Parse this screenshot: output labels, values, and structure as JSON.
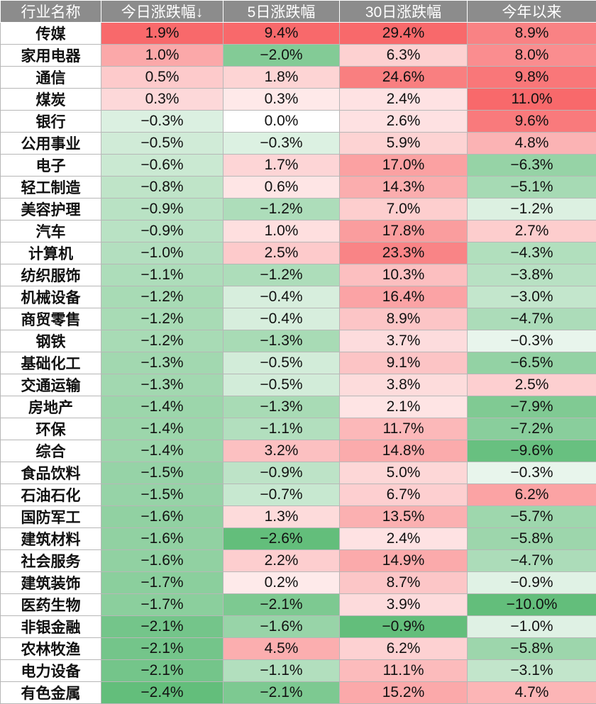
{
  "table": {
    "headers": [
      "行业名称",
      "今日涨跌幅↓",
      "5日涨跌幅",
      "30日涨跌幅",
      "今年以来"
    ],
    "rows": [
      [
        "传媒",
        "1.9%",
        "9.4%",
        "29.4%",
        "8.9%"
      ],
      [
        "家用电器",
        "1.0%",
        "−2.0%",
        "6.3%",
        "8.0%"
      ],
      [
        "通信",
        "0.5%",
        "1.8%",
        "24.6%",
        "9.8%"
      ],
      [
        "煤炭",
        "0.3%",
        "0.3%",
        "2.4%",
        "11.0%"
      ],
      [
        "银行",
        "−0.3%",
        "0.0%",
        "2.6%",
        "9.6%"
      ],
      [
        "公用事业",
        "−0.5%",
        "−0.3%",
        "5.9%",
        "4.8%"
      ],
      [
        "电子",
        "−0.6%",
        "1.7%",
        "17.0%",
        "−6.3%"
      ],
      [
        "轻工制造",
        "−0.8%",
        "0.6%",
        "14.3%",
        "−5.1%"
      ],
      [
        "美容护理",
        "−0.9%",
        "−1.2%",
        "7.0%",
        "−1.2%"
      ],
      [
        "汽车",
        "−0.9%",
        "1.0%",
        "17.8%",
        "2.7%"
      ],
      [
        "计算机",
        "−1.0%",
        "2.5%",
        "23.3%",
        "−4.3%"
      ],
      [
        "纺织服饰",
        "−1.1%",
        "−1.2%",
        "10.3%",
        "−3.8%"
      ],
      [
        "机械设备",
        "−1.2%",
        "−0.4%",
        "16.4%",
        "−3.0%"
      ],
      [
        "商贸零售",
        "−1.2%",
        "−0.4%",
        "8.9%",
        "−4.7%"
      ],
      [
        "钢铁",
        "−1.2%",
        "−1.3%",
        "3.7%",
        "−0.3%"
      ],
      [
        "基础化工",
        "−1.3%",
        "−0.5%",
        "9.1%",
        "−6.5%"
      ],
      [
        "交通运输",
        "−1.3%",
        "−0.5%",
        "3.8%",
        "2.5%"
      ],
      [
        "房地产",
        "−1.4%",
        "−1.3%",
        "2.1%",
        "−7.9%"
      ],
      [
        "环保",
        "−1.4%",
        "−1.1%",
        "11.7%",
        "−7.2%"
      ],
      [
        "综合",
        "−1.4%",
        "3.2%",
        "14.8%",
        "−9.6%"
      ],
      [
        "食品饮料",
        "−1.5%",
        "−0.9%",
        "5.0%",
        "−0.3%"
      ],
      [
        "石油石化",
        "−1.5%",
        "−0.7%",
        "6.7%",
        "6.2%"
      ],
      [
        "国防军工",
        "−1.6%",
        "1.3%",
        "13.5%",
        "−5.7%"
      ],
      [
        "建筑材料",
        "−1.6%",
        "−2.6%",
        "2.4%",
        "−5.8%"
      ],
      [
        "社会服务",
        "−1.6%",
        "2.2%",
        "14.9%",
        "−4.7%"
      ],
      [
        "建筑装饰",
        "−1.7%",
        "0.2%",
        "8.7%",
        "−0.9%"
      ],
      [
        "医药生物",
        "−1.7%",
        "−2.1%",
        "3.9%",
        "−10.0%"
      ],
      [
        "非银金融",
        "−2.1%",
        "−1.6%",
        "−0.9%",
        "−1.0%"
      ],
      [
        "农林牧渔",
        "−2.1%",
        "4.5%",
        "6.2%",
        "−5.8%"
      ],
      [
        "电力设备",
        "−2.1%",
        "−1.1%",
        "11.1%",
        "−3.1%"
      ],
      [
        "有色金属",
        "−2.4%",
        "−2.1%",
        "15.2%",
        "4.7%"
      ]
    ]
  },
  "colors": {
    "header_bg": "#8c8c8c",
    "positive_max": "#f8696b",
    "negative_max": "#63be7b",
    "neutral": "#ffffff"
  }
}
